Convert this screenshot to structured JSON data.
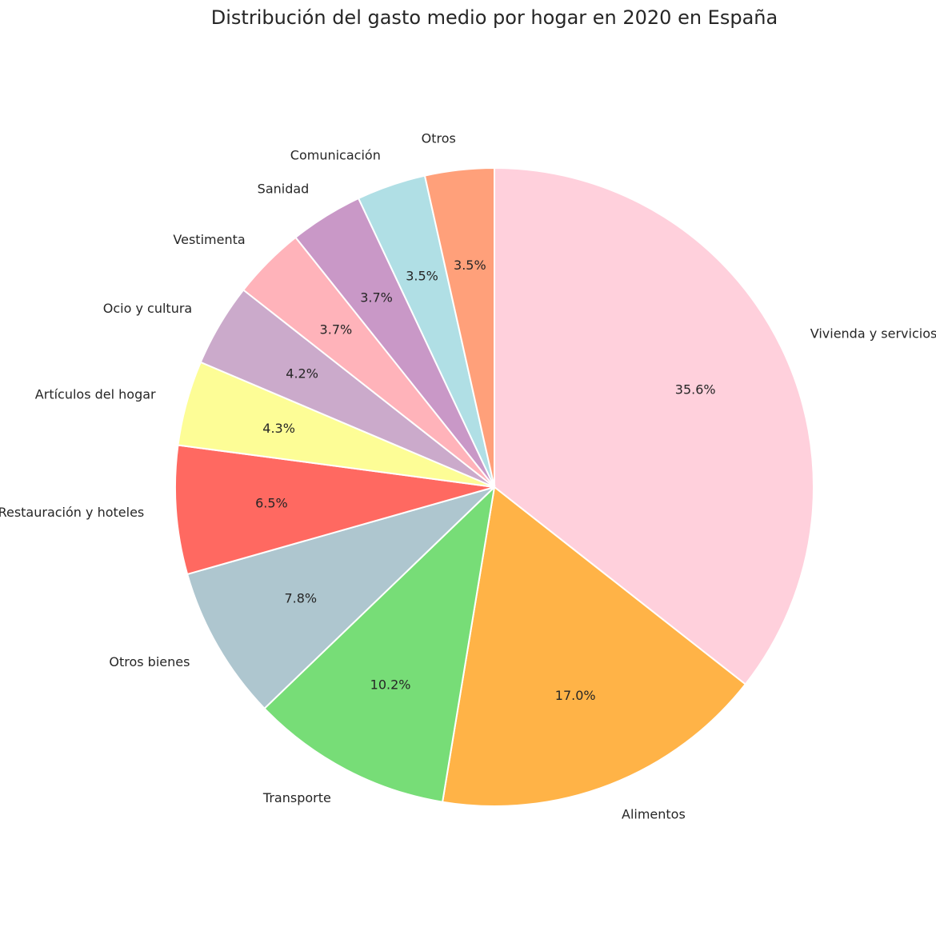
{
  "chart_data": {
    "type": "pie",
    "title": "Distribución del gasto medio por hogar en 2020 en España",
    "start_angle_deg": 90,
    "direction": "clockwise",
    "slices": [
      {
        "label": "Vivienda y servicios",
        "value": 35.6,
        "pct_label": "35.6%",
        "color": "#ffd0dc"
      },
      {
        "label": "Alimentos",
        "value": 17.0,
        "pct_label": "17.0%",
        "color": "#ffb347"
      },
      {
        "label": "Transporte",
        "value": 10.2,
        "pct_label": "10.2%",
        "color": "#77dd77"
      },
      {
        "label": "Otros bienes",
        "value": 7.8,
        "pct_label": "7.8%",
        "color": "#aec6cf"
      },
      {
        "label": "Restauración y hoteles",
        "value": 6.5,
        "pct_label": "6.5%",
        "color": "#ff6961"
      },
      {
        "label": "Artículos del hogar",
        "value": 4.3,
        "pct_label": "4.3%",
        "color": "#fdfd96"
      },
      {
        "label": "Ocio y cultura",
        "value": 4.2,
        "pct_label": "4.2%",
        "color": "#cbaacb"
      },
      {
        "label": "Vestimenta",
        "value": 3.7,
        "pct_label": "3.7%",
        "color": "#ffb3ba"
      },
      {
        "label": "Sanidad",
        "value": 3.7,
        "pct_label": "3.7%",
        "color": "#c998c7"
      },
      {
        "label": "Comunicación",
        "value": 3.5,
        "pct_label": "3.5%",
        "color": "#b0dfe5"
      },
      {
        "label": "Otros",
        "value": 3.5,
        "pct_label": "3.5%",
        "color": "#ffa07a"
      }
    ]
  }
}
